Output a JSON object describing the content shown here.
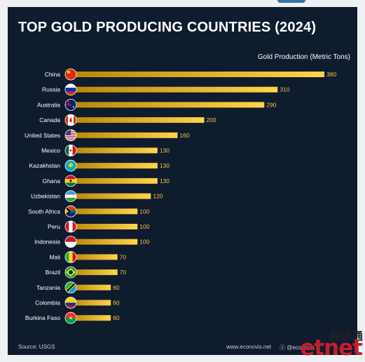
{
  "header": {
    "title": "TOP GOLD PRODUCING COUNTRIES (2024)",
    "axis_title": "Gold Production (Metric Tons)"
  },
  "footer": {
    "source": "Source: USGS",
    "site": "www.econovis.net",
    "social": "ⓧ @econovis"
  },
  "watermark": {
    "chinese": "经济通",
    "logo": "etnet"
  },
  "colors": {
    "background": "#0f1c2e",
    "bar_start": "#b8860b",
    "bar_end": "#ffd54a",
    "value_label": "#f5c542",
    "text": "#ffffff"
  },
  "chart_data": {
    "type": "bar",
    "orientation": "horizontal",
    "title": "TOP GOLD PRODUCING COUNTRIES (2024)",
    "xlabel": "Gold Production (Metric Tons)",
    "ylabel": "",
    "xlim": [
      0,
      380
    ],
    "grid": false,
    "categories": [
      "China",
      "Russia",
      "Australia",
      "Canada",
      "United States",
      "Mexico",
      "Kazakhstan",
      "Ghana",
      "Uzbekistan",
      "South Africa",
      "Peru",
      "Indonesia",
      "Mali",
      "Brazil",
      "Tanzania",
      "Colombia",
      "Burkina Faso"
    ],
    "values": [
      380,
      310,
      290,
      200,
      160,
      130,
      130,
      130,
      120,
      100,
      100,
      100,
      70,
      70,
      60,
      60,
      60
    ],
    "flag_icons": [
      "flag-china-icon",
      "flag-russia-icon",
      "flag-australia-icon",
      "flag-canada-icon",
      "flag-united-states-icon",
      "flag-mexico-icon",
      "flag-kazakhstan-icon",
      "flag-ghana-icon",
      "flag-uzbekistan-icon",
      "flag-south-africa-icon",
      "flag-peru-icon",
      "flag-indonesia-icon",
      "flag-mali-icon",
      "flag-brazil-icon",
      "flag-tanzania-icon",
      "flag-colombia-icon",
      "flag-burkina-faso-icon"
    ]
  }
}
